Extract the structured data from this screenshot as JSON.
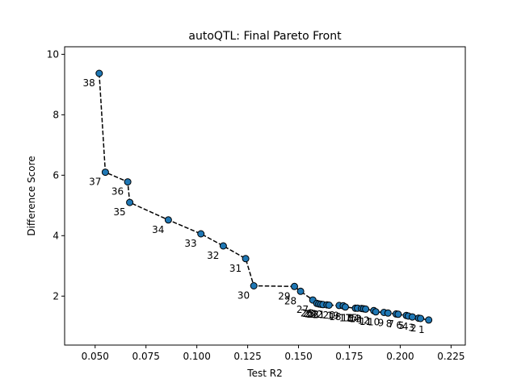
{
  "chart_data": {
    "type": "scatter",
    "title": "autoQTL: Final Pareto Front",
    "xlabel": "Test R2",
    "ylabel": "Difference Score",
    "xlim": [
      0.035,
      0.232
    ],
    "ylim": [
      0.38,
      10.25
    ],
    "xticks": [
      0.05,
      0.075,
      0.1,
      0.125,
      0.15,
      0.175,
      0.2,
      0.225
    ],
    "xtick_labels": [
      "0.050",
      "0.075",
      "0.100",
      "0.125",
      "0.150",
      "0.175",
      "0.200",
      "0.225"
    ],
    "yticks": [
      2,
      4,
      6,
      8,
      10
    ],
    "ytick_labels": [
      "2",
      "4",
      "6",
      "8",
      "10"
    ],
    "grid": false,
    "marker_color": "#1f77b4",
    "marker_edge": "#000000",
    "line_color": "#000000",
    "line_style": "dashed",
    "points": [
      {
        "label": "38",
        "x": 0.052,
        "y": 9.37
      },
      {
        "label": "37",
        "x": 0.055,
        "y": 6.1
      },
      {
        "label": "36",
        "x": 0.066,
        "y": 5.78
      },
      {
        "label": "35",
        "x": 0.067,
        "y": 5.1
      },
      {
        "label": "34",
        "x": 0.086,
        "y": 4.52
      },
      {
        "label": "33",
        "x": 0.102,
        "y": 4.06
      },
      {
        "label": "32",
        "x": 0.113,
        "y": 3.66
      },
      {
        "label": "31",
        "x": 0.124,
        "y": 3.24
      },
      {
        "label": "30",
        "x": 0.128,
        "y": 2.34
      },
      {
        "label": "29",
        "x": 0.148,
        "y": 2.32
      },
      {
        "label": "28",
        "x": 0.151,
        "y": 2.16
      },
      {
        "label": "27",
        "x": 0.157,
        "y": 1.87
      },
      {
        "label": "26",
        "x": 0.159,
        "y": 1.76
      },
      {
        "label": "25",
        "x": 0.16,
        "y": 1.74
      },
      {
        "label": "24",
        "x": 0.161,
        "y": 1.73
      },
      {
        "label": "23",
        "x": 0.162,
        "y": 1.72
      },
      {
        "label": "22",
        "x": 0.164,
        "y": 1.71
      },
      {
        "label": "21",
        "x": 0.165,
        "y": 1.7
      },
      {
        "label": "20",
        "x": 0.17,
        "y": 1.69
      },
      {
        "label": "19",
        "x": 0.172,
        "y": 1.68
      },
      {
        "label": "18",
        "x": 0.173,
        "y": 1.64
      },
      {
        "label": "17",
        "x": 0.178,
        "y": 1.6
      },
      {
        "label": "16",
        "x": 0.179,
        "y": 1.6
      },
      {
        "label": "15",
        "x": 0.181,
        "y": 1.59
      },
      {
        "label": "14",
        "x": 0.182,
        "y": 1.58
      },
      {
        "label": "13",
        "x": 0.183,
        "y": 1.57
      },
      {
        "label": "12",
        "x": 0.187,
        "y": 1.52
      },
      {
        "label": "11",
        "x": 0.188,
        "y": 1.48
      },
      {
        "label": "10",
        "x": 0.192,
        "y": 1.46
      },
      {
        "label": "9",
        "x": 0.194,
        "y": 1.44
      },
      {
        "label": "8",
        "x": 0.198,
        "y": 1.41
      },
      {
        "label": "7",
        "x": 0.199,
        "y": 1.4
      },
      {
        "label": "6",
        "x": 0.203,
        "y": 1.36
      },
      {
        "label": "5",
        "x": 0.204,
        "y": 1.34
      },
      {
        "label": "4",
        "x": 0.206,
        "y": 1.31
      },
      {
        "label": "3",
        "x": 0.209,
        "y": 1.27
      },
      {
        "label": "2",
        "x": 0.21,
        "y": 1.26
      },
      {
        "label": "1",
        "x": 0.214,
        "y": 1.21
      }
    ]
  }
}
